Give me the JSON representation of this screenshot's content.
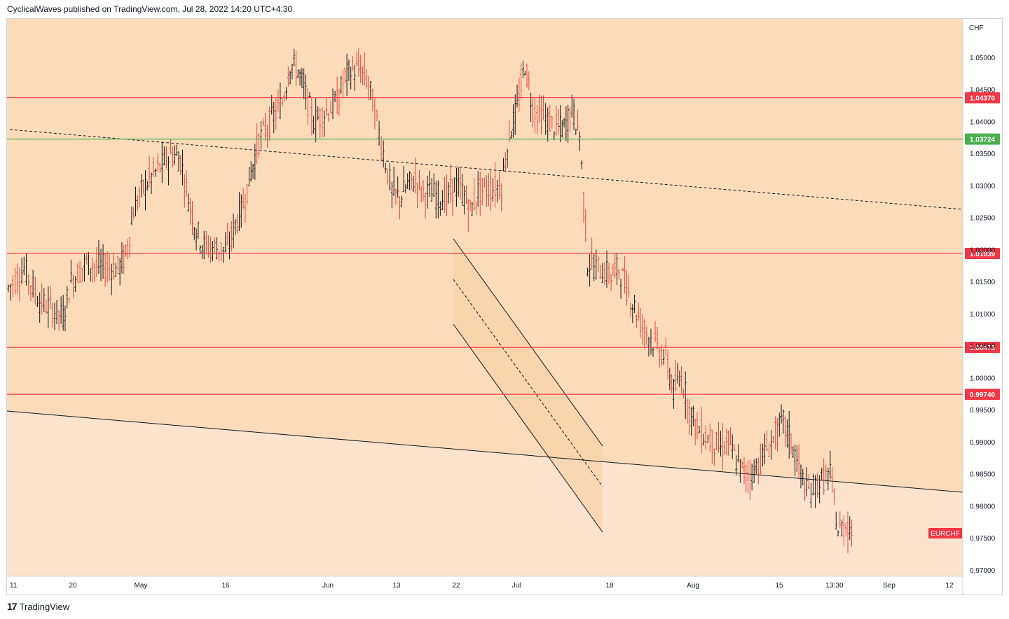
{
  "header": {
    "text": "CyclicalWaves published on TradingView.com, Jul 28, 2022 14:20 UTC+4:30"
  },
  "footer": {
    "brand": "TradingView",
    "logo_glyph": "17"
  },
  "colors": {
    "background": "#fcdcb8",
    "lower_zone": "#fbe3cd",
    "channel_fill": "#f9cfa0",
    "resistance": "#f23645",
    "support_green": "#4caf50",
    "up_bar": "#131722",
    "down_bar": "#e8443f"
  },
  "chart_data": {
    "type": "ohlc",
    "symbol": "EURCHF",
    "currency": "CHF",
    "y_range": [
      0.969,
      1.056
    ],
    "price_ticks": [
      "1.05000",
      "1.04500",
      "1.04000",
      "1.03500",
      "1.03000",
      "1.02500",
      "1.02000",
      "1.01500",
      "1.01000",
      "1.00500",
      "1.00000",
      "0.99500",
      "0.99000",
      "0.98500",
      "0.98000",
      "0.97500",
      "0.97000"
    ],
    "horizontal_levels": [
      {
        "value": 1.0437,
        "label": "1.04370",
        "color": "#f23645"
      },
      {
        "value": 1.03724,
        "label": "1.03724",
        "color": "#4caf50"
      },
      {
        "value": 1.01939,
        "label": "1.01939",
        "color": "#f23645"
      },
      {
        "value": 1.00473,
        "label": "1.00473",
        "color": "#f23645"
      },
      {
        "value": 0.9974,
        "label": "0.99740",
        "color": "#f23645"
      }
    ],
    "time_ticks": [
      "11",
      "20",
      "May",
      "16",
      "Jun",
      "13",
      "22",
      "Jul",
      "18",
      "Aug",
      "15",
      "13:30",
      "Sep",
      "12"
    ],
    "symbol_badge": "EURCHF",
    "price_path": [
      [
        "Apr 11",
        1.014
      ],
      [
        "Apr 13",
        1.017
      ],
      [
        "Apr 15",
        1.012
      ],
      [
        "Apr 18",
        1.0095
      ],
      [
        "Apr 19",
        1.015
      ],
      [
        "Apr 21",
        1.018
      ],
      [
        "Apr 22",
        1.0175
      ],
      [
        "Apr 25",
        1.017
      ],
      [
        "Apr 26",
        1.019
      ],
      [
        "Apr 27",
        1.026
      ],
      [
        "Apr 28",
        1.029
      ],
      [
        "Apr 29",
        1.031
      ],
      [
        "May 2",
        1.035
      ],
      [
        "May 3",
        1.034
      ],
      [
        "May 4",
        1.028
      ],
      [
        "May 5",
        1.023
      ],
      [
        "May 6",
        1.0205
      ],
      [
        "May 9",
        1.02
      ],
      [
        "May 10",
        1.024
      ],
      [
        "May 11",
        1.027
      ],
      [
        "May 12",
        1.032
      ],
      [
        "May 13",
        1.037
      ],
      [
        "May 16",
        1.043
      ],
      [
        "May 17",
        1.049
      ],
      [
        "May 18",
        1.048
      ],
      [
        "May 19",
        1.044
      ],
      [
        "May 20",
        1.04
      ],
      [
        "May 23",
        1.043
      ],
      [
        "May 24",
        1.047
      ],
      [
        "May 25",
        1.048
      ],
      [
        "May 26",
        1.048
      ],
      [
        "May 27",
        1.046
      ],
      [
        "May 30",
        1.029
      ],
      [
        "May 31",
        1.028
      ],
      [
        "Jun 1",
        1.03
      ],
      [
        "Jun 2",
        1.031
      ],
      [
        "Jun 3",
        1.029
      ],
      [
        "Jun 6",
        1.028
      ],
      [
        "Jun 7",
        1.03
      ],
      [
        "Jun 8",
        1.029
      ],
      [
        "Jun 9",
        1.026
      ],
      [
        "Jun 10",
        1.029
      ],
      [
        "Jun 13",
        1.03
      ],
      [
        "Jun 14",
        1.038
      ],
      [
        "Jun 15",
        1.042
      ],
      [
        "Jun 16",
        1.049
      ],
      [
        "Jun 17",
        1.042
      ],
      [
        "Jun 20",
        1.039
      ],
      [
        "Jun 21",
        1.039
      ],
      [
        "Jun 22",
        1.042
      ],
      [
        "Jun 23",
        1.038
      ],
      [
        "Jun 24",
        1.018
      ],
      [
        "Jun 27",
        1.016
      ],
      [
        "Jun 28",
        1.017
      ],
      [
        "Jun 29",
        1.014
      ],
      [
        "Jun 30",
        1.011
      ],
      [
        "Jul 1",
        1.008
      ],
      [
        "Jul 4",
        1.003
      ],
      [
        "Jul 5",
        0.998
      ],
      [
        "Jul 6",
        1.0
      ],
      [
        "Jul 7",
        0.995
      ],
      [
        "Jul 8",
        0.992
      ],
      [
        "Jul 11",
        0.989
      ],
      [
        "Jul 12",
        0.99
      ],
      [
        "Jul 13",
        0.987
      ],
      [
        "Jul 14",
        0.985
      ],
      [
        "Jul 15",
        0.985
      ],
      [
        "Jul 18",
        0.991
      ],
      [
        "Jul 19",
        0.993
      ],
      [
        "Jul 20",
        0.99
      ],
      [
        "Jul 21",
        0.986
      ],
      [
        "Jul 22",
        0.982
      ],
      [
        "Jul 25",
        0.985
      ],
      [
        "Jul 26",
        0.976
      ],
      [
        "Jul 27",
        0.977
      ],
      [
        "Jul 28",
        0.976
      ]
    ]
  }
}
